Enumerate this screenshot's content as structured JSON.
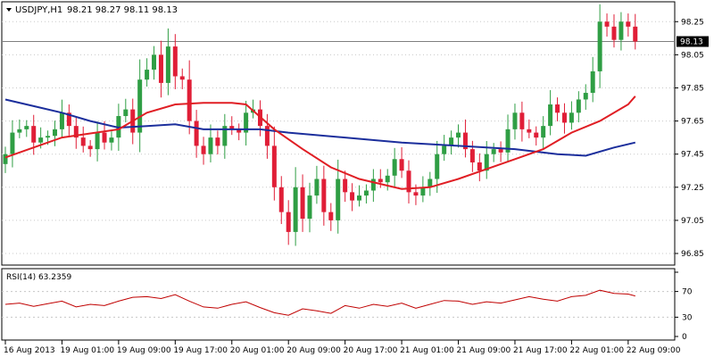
{
  "header": {
    "symbol": "USDJPY,H1",
    "ohlc": "98.21 98.27 98.11 98.13"
  },
  "colors": {
    "bull": "#2f9e44",
    "bear": "#e01e37",
    "ma_fast": "#e01e24",
    "ma_slow": "#1b2e9c",
    "price_line": "#7f7f7f",
    "rsi": "#c00000",
    "grid": "#c8c8c8",
    "frame": "#000000",
    "price_box": "#000000"
  },
  "chart_data": [
    {
      "type": "candlestick",
      "title": "USDJPY,H1",
      "ohlc_text": "98.21 98.27 98.11 98.13",
      "current_price": 98.13,
      "current_price_label": "98.13",
      "ylim": [
        96.78,
        98.37
      ],
      "y_ticks": [
        "98.25",
        "98.05",
        "97.85",
        "97.65",
        "97.45",
        "97.25",
        "97.05",
        "96.85"
      ],
      "x_tick_labels": [
        "16 Aug 2013",
        "19 Aug 01:00",
        "19 Aug 09:00",
        "19 Aug 17:00",
        "20 Aug 01:00",
        "20 Aug 09:00",
        "20 Aug 17:00",
        "21 Aug 01:00",
        "21 Aug 09:00",
        "21 Aug 17:00",
        "22 Aug 01:00",
        "22 Aug 09:00"
      ],
      "x_tick_bar_index": [
        0,
        8,
        16,
        24,
        32,
        40,
        48,
        56,
        64,
        72,
        80,
        88
      ],
      "close": [
        97.45,
        97.58,
        97.6,
        97.62,
        97.52,
        97.55,
        97.56,
        97.6,
        97.7,
        97.62,
        97.55,
        97.5,
        97.48,
        97.58,
        97.52,
        97.55,
        97.68,
        97.72,
        97.58,
        97.9,
        97.96,
        98.05,
        97.88,
        98.1,
        97.92,
        97.9,
        97.65,
        97.5,
        97.45,
        97.55,
        97.5,
        97.62,
        97.6,
        97.58,
        97.7,
        97.72,
        97.62,
        97.5,
        97.25,
        97.1,
        96.98,
        97.25,
        97.06,
        97.2,
        97.3,
        97.1,
        97.05,
        97.3,
        97.22,
        97.17,
        97.2,
        97.23,
        97.3,
        97.28,
        97.32,
        97.42,
        97.35,
        97.22,
        97.2,
        97.25,
        97.3,
        97.45,
        97.5,
        97.55,
        97.58,
        97.48,
        97.4,
        97.35,
        97.45,
        97.48,
        97.46,
        97.6,
        97.7,
        97.6,
        97.58,
        97.55,
        97.62,
        97.75,
        97.7,
        97.64,
        97.7,
        97.78,
        97.82,
        97.95,
        98.25,
        98.22,
        98.14,
        98.25,
        98.22,
        98.13
      ],
      "fast_ma_period_note": "",
      "fast_ma": [
        {
          "bar": 0,
          "value": 97.43
        },
        {
          "bar": 8,
          "value": 97.55
        },
        {
          "bar": 16,
          "value": 97.6
        },
        {
          "bar": 20,
          "value": 97.7
        },
        {
          "bar": 24,
          "value": 97.75
        },
        {
          "bar": 28,
          "value": 97.76
        },
        {
          "bar": 32,
          "value": 97.76
        },
        {
          "bar": 34,
          "value": 97.75
        },
        {
          "bar": 38,
          "value": 97.6
        },
        {
          "bar": 42,
          "value": 97.48
        },
        {
          "bar": 46,
          "value": 97.37
        },
        {
          "bar": 50,
          "value": 97.3
        },
        {
          "bar": 56,
          "value": 97.24
        },
        {
          "bar": 60,
          "value": 97.25
        },
        {
          "bar": 64,
          "value": 97.3
        },
        {
          "bar": 68,
          "value": 97.36
        },
        {
          "bar": 72,
          "value": 97.42
        },
        {
          "bar": 76,
          "value": 97.48
        },
        {
          "bar": 80,
          "value": 97.58
        },
        {
          "bar": 84,
          "value": 97.65
        },
        {
          "bar": 88,
          "value": 97.75
        },
        {
          "bar": 89,
          "value": 97.8
        }
      ],
      "slow_ma": [
        {
          "bar": 0,
          "value": 97.78
        },
        {
          "bar": 4,
          "value": 97.74
        },
        {
          "bar": 8,
          "value": 97.7
        },
        {
          "bar": 12,
          "value": 97.65
        },
        {
          "bar": 16,
          "value": 97.61
        },
        {
          "bar": 20,
          "value": 97.62
        },
        {
          "bar": 24,
          "value": 97.63
        },
        {
          "bar": 28,
          "value": 97.6
        },
        {
          "bar": 32,
          "value": 97.6
        },
        {
          "bar": 36,
          "value": 97.6
        },
        {
          "bar": 40,
          "value": 97.58
        },
        {
          "bar": 48,
          "value": 97.55
        },
        {
          "bar": 56,
          "value": 97.52
        },
        {
          "bar": 64,
          "value": 97.5
        },
        {
          "bar": 72,
          "value": 97.48
        },
        {
          "bar": 78,
          "value": 97.45
        },
        {
          "bar": 82,
          "value": 97.44
        },
        {
          "bar": 86,
          "value": 97.49
        },
        {
          "bar": 89,
          "value": 97.52
        }
      ]
    },
    {
      "type": "line",
      "title": "RSI(14) 63.2359",
      "indicator_label": "RSI(14) 63.2359",
      "ylim": [
        0,
        100
      ],
      "levels": [
        70,
        30
      ],
      "y_ticks": [
        100,
        70,
        30,
        0
      ],
      "y_tick_labels": [
        "70",
        "30",
        "0"
      ],
      "rsi_points": [
        {
          "bar": 0,
          "value": 50
        },
        {
          "bar": 2,
          "value": 52
        },
        {
          "bar": 4,
          "value": 47
        },
        {
          "bar": 6,
          "value": 51
        },
        {
          "bar": 8,
          "value": 55
        },
        {
          "bar": 10,
          "value": 46
        },
        {
          "bar": 12,
          "value": 50
        },
        {
          "bar": 14,
          "value": 48
        },
        {
          "bar": 16,
          "value": 55
        },
        {
          "bar": 18,
          "value": 61
        },
        {
          "bar": 20,
          "value": 62
        },
        {
          "bar": 22,
          "value": 59
        },
        {
          "bar": 24,
          "value": 65
        },
        {
          "bar": 26,
          "value": 55
        },
        {
          "bar": 28,
          "value": 46
        },
        {
          "bar": 30,
          "value": 44
        },
        {
          "bar": 32,
          "value": 50
        },
        {
          "bar": 34,
          "value": 54
        },
        {
          "bar": 36,
          "value": 45
        },
        {
          "bar": 38,
          "value": 37
        },
        {
          "bar": 40,
          "value": 33
        },
        {
          "bar": 42,
          "value": 43
        },
        {
          "bar": 44,
          "value": 40
        },
        {
          "bar": 46,
          "value": 36
        },
        {
          "bar": 48,
          "value": 48
        },
        {
          "bar": 50,
          "value": 44
        },
        {
          "bar": 52,
          "value": 50
        },
        {
          "bar": 54,
          "value": 47
        },
        {
          "bar": 56,
          "value": 52
        },
        {
          "bar": 58,
          "value": 44
        },
        {
          "bar": 60,
          "value": 50
        },
        {
          "bar": 62,
          "value": 56
        },
        {
          "bar": 64,
          "value": 55
        },
        {
          "bar": 66,
          "value": 50
        },
        {
          "bar": 68,
          "value": 54
        },
        {
          "bar": 70,
          "value": 52
        },
        {
          "bar": 72,
          "value": 57
        },
        {
          "bar": 74,
          "value": 62
        },
        {
          "bar": 76,
          "value": 58
        },
        {
          "bar": 78,
          "value": 55
        },
        {
          "bar": 80,
          "value": 62
        },
        {
          "bar": 82,
          "value": 64
        },
        {
          "bar": 84,
          "value": 72
        },
        {
          "bar": 86,
          "value": 67
        },
        {
          "bar": 88,
          "value": 66
        },
        {
          "bar": 89,
          "value": 63
        }
      ]
    }
  ]
}
